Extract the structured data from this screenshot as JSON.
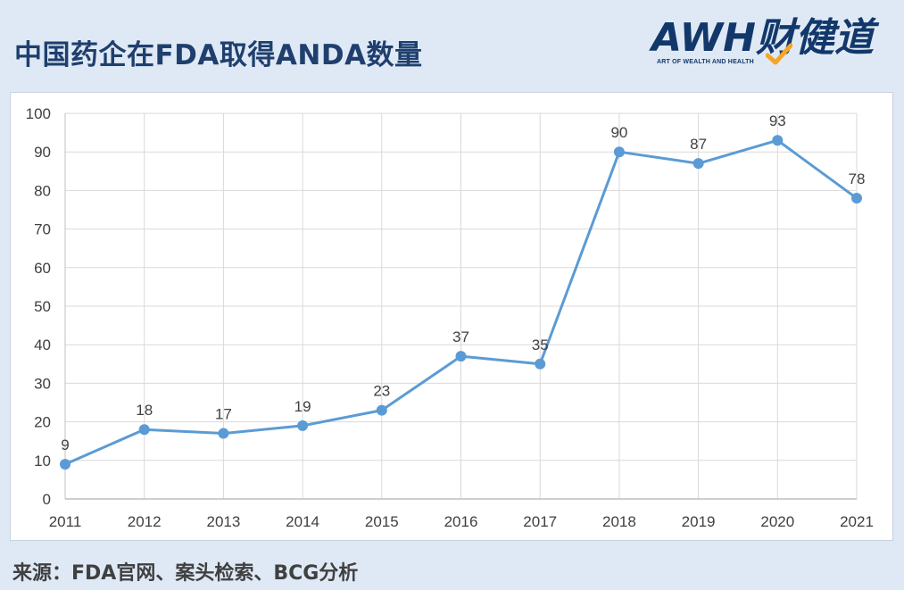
{
  "header": {
    "title": "中国药企在FDA取得ANDA数量",
    "logo": {
      "mark": "AWH财健道",
      "tagline": "ART OF WEALTH AND HEALTH"
    }
  },
  "footer": {
    "source": "来源：FDA官网、案头检索、BCG分析"
  },
  "colors": {
    "line": "#5b9bd5",
    "background": "#dfe9f5",
    "title": "#1f3f6e",
    "logo_check": "#f5a623"
  },
  "chart_data": {
    "type": "line",
    "title": "中国药企在FDA取得ANDA数量",
    "xlabel": "",
    "ylabel": "",
    "categories": [
      "2011",
      "2012",
      "2013",
      "2014",
      "2015",
      "2016",
      "2017",
      "2018",
      "2019",
      "2020",
      "2021"
    ],
    "series": [
      {
        "values": [
          9,
          18,
          17,
          19,
          23,
          37,
          35,
          90,
          87,
          93,
          78
        ]
      }
    ],
    "ylim": [
      0,
      100
    ],
    "yticks": [
      0,
      10,
      20,
      30,
      40,
      50,
      60,
      70,
      80,
      90,
      100
    ],
    "grid": true,
    "legend": "none",
    "data_labels": true
  }
}
